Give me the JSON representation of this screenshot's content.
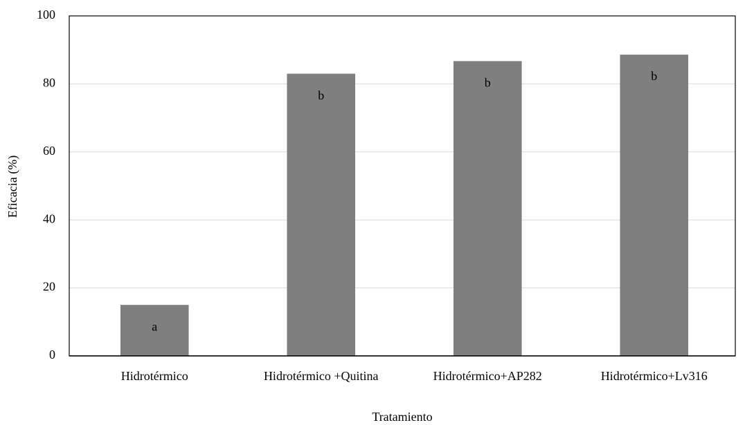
{
  "chart_data": {
    "type": "bar",
    "categories": [
      "Hidrotérmico",
      "Hidrotérmico +Quitina",
      "Hidrotérmico+AP282",
      "Hidrotérmico+Lv316"
    ],
    "values": [
      15,
      83,
      86.7,
      88.6
    ],
    "annotations": [
      "a",
      "b",
      "b",
      "b"
    ],
    "color": "#7f7f7f",
    "xlabel": "Tratamiento",
    "ylabel": "Eficacia (%)",
    "ylim": [
      0,
      100
    ],
    "yticks": [
      0,
      20,
      40,
      60,
      80,
      100
    ],
    "grid": true
  }
}
